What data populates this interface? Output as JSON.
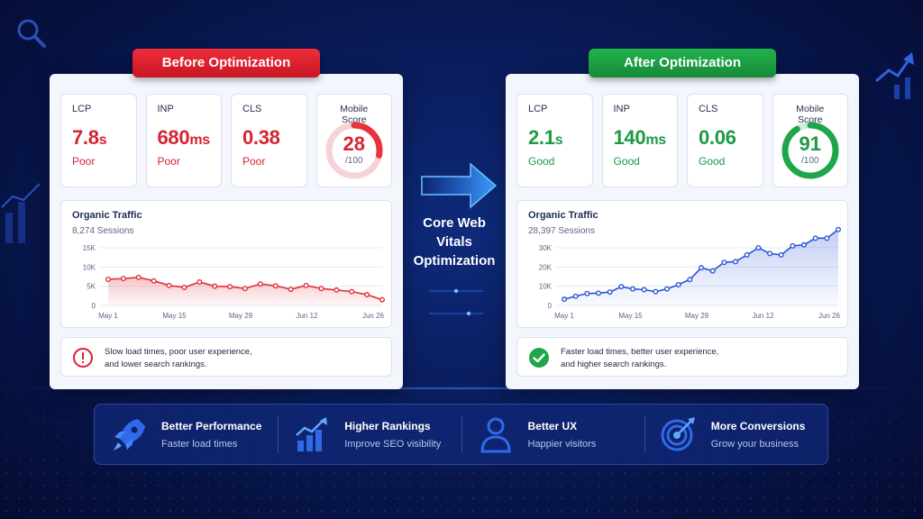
{
  "before": {
    "label": "Before Optimization",
    "metrics": [
      {
        "name": "LCP",
        "value": "7.8",
        "unit": "s",
        "status": "Poor"
      },
      {
        "name": "INP",
        "value": "680",
        "unit": "ms",
        "status": "Poor"
      },
      {
        "name": "CLS",
        "value": "0.38",
        "unit": "",
        "status": "Poor"
      }
    ],
    "score": {
      "label": "Mobile Score",
      "value": "28",
      "denominator": "/100",
      "fraction": 0.28,
      "color": "#e8323e"
    },
    "traffic": {
      "title": "Organic Traffic",
      "subtitle": "8,274 Sessions"
    },
    "note": {
      "line1": "Slow load times, poor user experience,",
      "line2": "and lower search rankings."
    }
  },
  "after": {
    "label": "After Optimization",
    "metrics": [
      {
        "name": "LCP",
        "value": "2.1",
        "unit": "s",
        "status": "Good"
      },
      {
        "name": "INP",
        "value": "140",
        "unit": "ms",
        "status": "Good"
      },
      {
        "name": "CLS",
        "value": "0.06",
        "unit": "",
        "status": "Good"
      }
    ],
    "score": {
      "label": "Mobile Score",
      "value": "91",
      "denominator": "/100",
      "fraction": 0.91,
      "color": "#1fa64a"
    },
    "traffic": {
      "title": "Organic Traffic",
      "subtitle": "28,397 Sessions"
    },
    "note": {
      "line1": "Faster load times, better user experience,",
      "line2": "and higher search rankings."
    }
  },
  "center": {
    "line1": "Core Web",
    "line2": "Vitals",
    "line3": "Optimization"
  },
  "features": [
    {
      "title": "Better Performance",
      "subtitle": "Faster load times",
      "icon": "rocket-icon"
    },
    {
      "title": "Higher Rankings",
      "subtitle": "Improve SEO visibility",
      "icon": "bar-chart-icon"
    },
    {
      "title": "Better UX",
      "subtitle": "Happier visitors",
      "icon": "user-icon"
    },
    {
      "title": "More Conversions",
      "subtitle": "Grow your business",
      "icon": "target-icon"
    }
  ],
  "chart_data": [
    {
      "type": "area",
      "title": "Organic Traffic",
      "subtitle": "8,274 Sessions",
      "x_ticks": [
        "May 1",
        "May 15",
        "May 29",
        "Jun 12",
        "Jun 26"
      ],
      "y_ticks": [
        "0",
        "5K",
        "10K",
        "15K"
      ],
      "ylim": [
        0,
        15000
      ],
      "color": "#e0303b",
      "values": [
        6800,
        7000,
        7300,
        6400,
        5200,
        4700,
        6100,
        5000,
        4900,
        4400,
        5600,
        5100,
        4200,
        5200,
        4400,
        4000,
        3600,
        2800,
        1500
      ]
    },
    {
      "type": "area",
      "title": "Organic Traffic",
      "subtitle": "28,397 Sessions",
      "x_ticks": [
        "May 1",
        "May 15",
        "May 29",
        "Jun 12",
        "Jun 26"
      ],
      "y_ticks": [
        "0",
        "10K",
        "20K",
        "30K"
      ],
      "ylim": [
        0,
        30000
      ],
      "color": "#2a54d6",
      "values": [
        3200,
        4800,
        6200,
        6400,
        7000,
        9800,
        8600,
        8200,
        7200,
        8600,
        10800,
        13500,
        19600,
        18000,
        22400,
        22800,
        26300,
        30000,
        27000,
        26300,
        31000,
        31500,
        35000,
        35000,
        39500
      ]
    }
  ]
}
